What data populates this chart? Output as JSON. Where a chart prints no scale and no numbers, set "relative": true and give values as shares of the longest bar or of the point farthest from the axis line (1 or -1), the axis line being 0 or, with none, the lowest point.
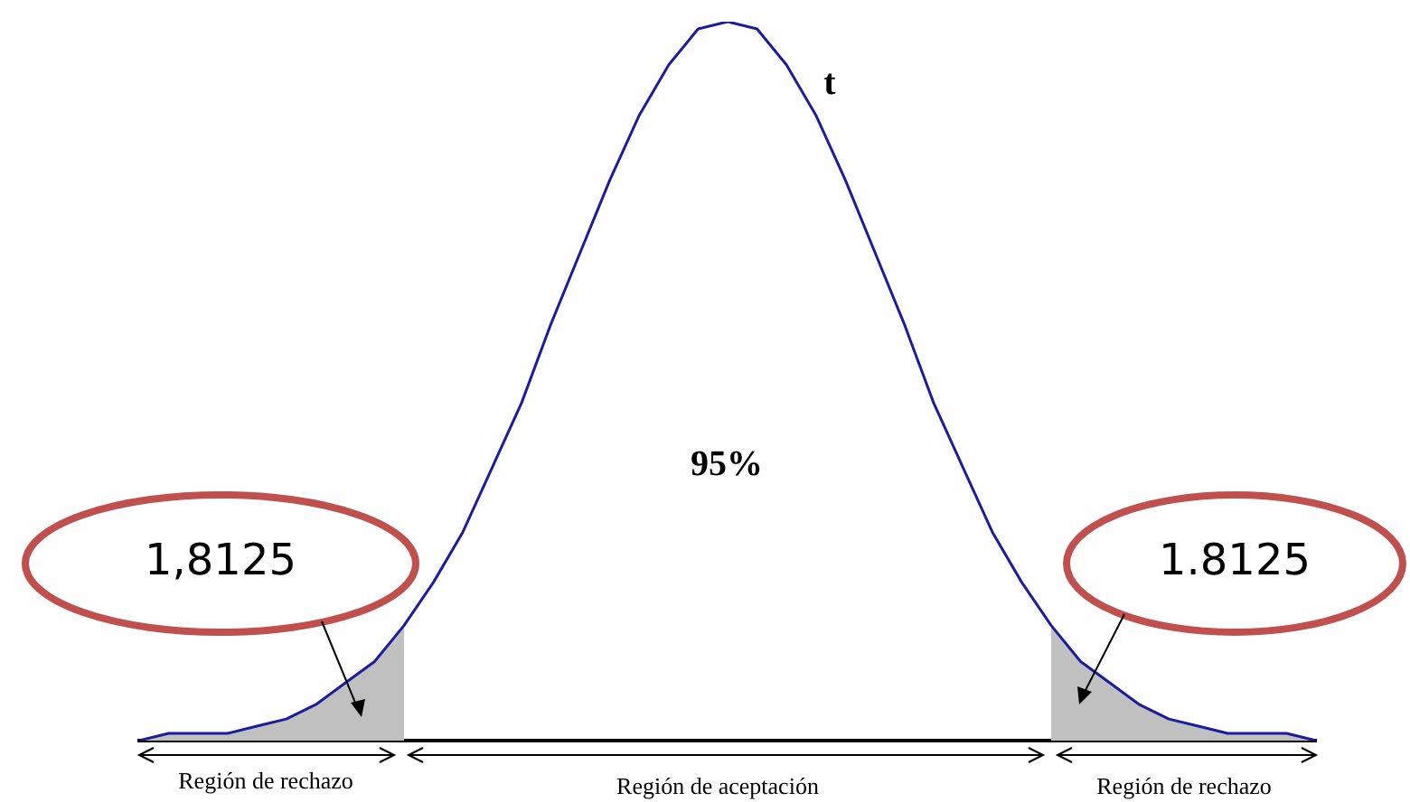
{
  "chart_data": {
    "type": "line",
    "relative": true,
    "grid": false,
    "legend": false,
    "marker": "none",
    "categories": [
      null,
      null,
      null,
      null,
      null,
      null,
      null,
      null,
      null,
      null,
      null,
      null,
      null,
      null,
      null,
      null,
      null,
      null,
      null,
      null,
      null,
      null,
      null,
      null,
      null,
      null,
      null,
      null,
      null,
      null,
      null,
      null,
      null,
      null,
      null,
      null,
      null,
      null,
      null,
      null,
      null
    ],
    "series": [
      {
        "color": "#1c1c9c",
        "values": [
          0.0,
          0.01,
          0.01,
          0.01,
          0.02,
          0.03,
          0.05,
          0.08,
          0.11,
          0.16,
          0.22,
          0.29,
          0.38,
          0.47,
          0.58,
          0.68,
          0.78,
          0.87,
          0.94,
          0.99,
          1.0,
          0.99,
          0.94,
          0.87,
          0.78,
          0.68,
          0.58,
          0.47,
          0.38,
          0.29,
          0.22,
          0.16,
          0.11,
          0.08,
          0.05,
          0.03,
          0.02,
          0.01,
          0.01,
          0.01,
          0.0
        ]
      },
      {
        "type": "area",
        "color": "#c0c0c0",
        "values": [
          0.0,
          0.01,
          0.01,
          0.01,
          0.02,
          0.03,
          0.05,
          0.08,
          0.11,
          0.16,
          null,
          null,
          null,
          null,
          null,
          null,
          null,
          null,
          null,
          null,
          null,
          null,
          null,
          null,
          null,
          null,
          null,
          null,
          null,
          null,
          null,
          null,
          null,
          null,
          null,
          null,
          null,
          null,
          null,
          null,
          null
        ]
      },
      {
        "type": "area",
        "color": "#c0c0c0",
        "values": [
          null,
          null,
          null,
          null,
          null,
          null,
          null,
          null,
          null,
          null,
          null,
          null,
          null,
          null,
          null,
          null,
          null,
          null,
          null,
          null,
          null,
          null,
          null,
          null,
          null,
          null,
          null,
          null,
          null,
          null,
          null,
          0.16,
          0.11,
          0.08,
          0.05,
          0.03,
          0.02,
          0.01,
          0.01,
          0.01,
          0.0
        ]
      }
    ],
    "annotations": [
      "t",
      "95%",
      "1,8125",
      "1.8125",
      "Región de rechazo",
      "Región de aceptación",
      "Región de rechazo"
    ]
  }
}
